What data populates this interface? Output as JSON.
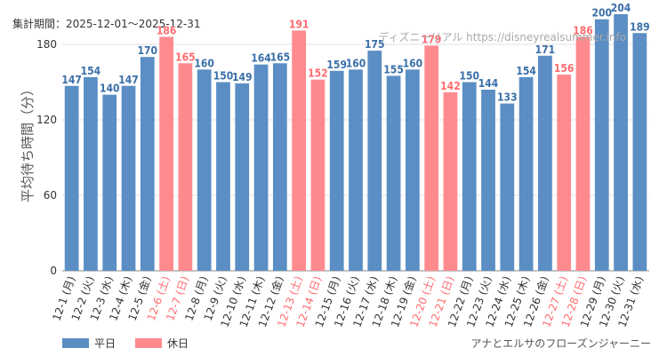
{
  "header": {
    "period_label": "集計期間：2025-12-01～2025-12-31",
    "source_label": "ディズニーリアル https://disneyrealsummer.info"
  },
  "footer": {
    "attraction_name": "アナとエルサのフローズンジャーニー"
  },
  "colors": {
    "weekday": "#5b8ec4",
    "holiday": "#ff8a8e",
    "weekday_label": "#3a6fa8",
    "holiday_label": "#ff6b70",
    "grid": "#e0e0e0",
    "axis_text": "#333333"
  },
  "chart_data": {
    "type": "bar",
    "ylabel": "平均待ち時間（分）",
    "ylim": [
      0,
      204
    ],
    "yticks": [
      0,
      60,
      120,
      180
    ],
    "categories": [
      "12-1 (月)",
      "12-2 (火)",
      "12-3 (水)",
      "12-4 (木)",
      "12-5 (金)",
      "12-6 (土)",
      "12-7 (日)",
      "12-8 (月)",
      "12-9 (火)",
      "12-10 (水)",
      "12-11 (木)",
      "12-12 (金)",
      "12-13 (土)",
      "12-14 (日)",
      "12-15 (月)",
      "12-16 (火)",
      "12-17 (水)",
      "12-18 (木)",
      "12-19 (金)",
      "12-20 (土)",
      "12-21 (日)",
      "12-22 (月)",
      "12-23 (火)",
      "12-24 (水)",
      "12-25 (木)",
      "12-26 (金)",
      "12-27 (土)",
      "12-28 (日)",
      "12-29 (月)",
      "12-30 (火)",
      "12-31 (水)"
    ],
    "values": [
      147,
      154,
      140,
      147,
      170,
      186,
      165,
      160,
      150,
      149,
      164,
      165,
      191,
      152,
      159,
      160,
      175,
      155,
      160,
      179,
      142,
      150,
      144,
      133,
      154,
      171,
      156,
      186,
      200,
      204,
      189
    ],
    "holiday": [
      false,
      false,
      false,
      false,
      false,
      true,
      true,
      false,
      false,
      false,
      false,
      false,
      true,
      true,
      false,
      false,
      false,
      false,
      false,
      true,
      true,
      false,
      false,
      false,
      false,
      false,
      true,
      true,
      false,
      false,
      false
    ],
    "legend": [
      {
        "name": "平日",
        "color": "#5b8ec4"
      },
      {
        "name": "休日",
        "color": "#ff8a8e"
      }
    ]
  }
}
